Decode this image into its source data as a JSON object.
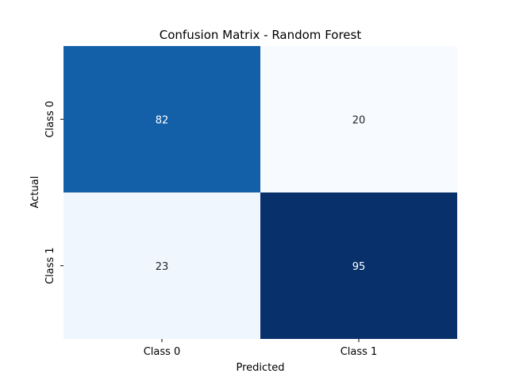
{
  "chart_data": {
    "type": "heatmap",
    "title": "Confusion Matrix - Random Forest",
    "xlabel": "Predicted",
    "ylabel": "Actual",
    "x_categories": [
      "Class 0",
      "Class 1"
    ],
    "y_categories": [
      "Class 0",
      "Class 1"
    ],
    "values": [
      [
        82,
        20
      ],
      [
        23,
        95
      ]
    ],
    "colormap": "Blues",
    "annotations": true,
    "colorbar": false,
    "cell_colors": [
      [
        "#1460a8",
        "#f7fbff"
      ],
      [
        "#f0f6fd",
        "#08306b"
      ]
    ],
    "annotation_colors": [
      [
        "#ffffff",
        "#262626"
      ],
      [
        "#262626",
        "#ffffff"
      ]
    ]
  }
}
